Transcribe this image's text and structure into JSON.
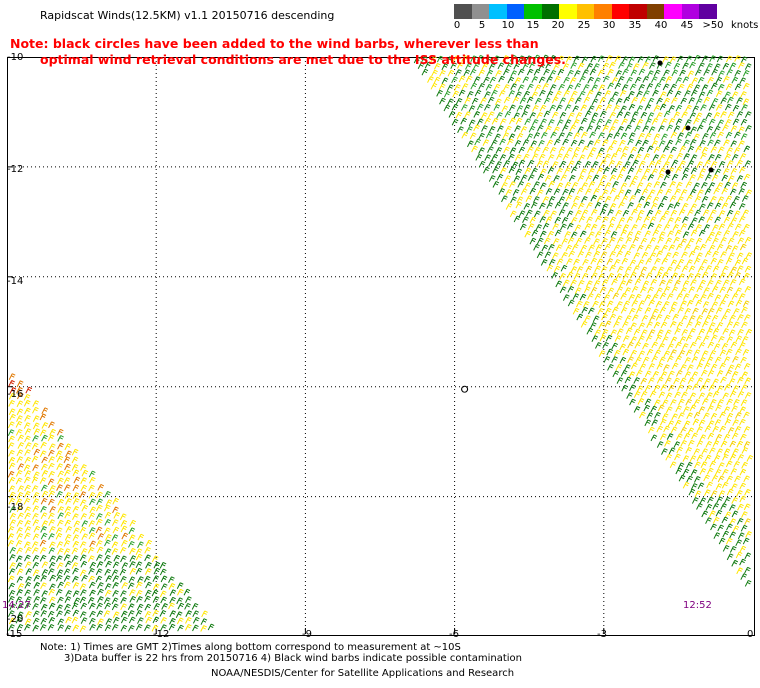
{
  "title": "Rapidscat Winds(12.5KM) v1.1 20150716 descending",
  "note": {
    "line1": "Note: black circles have been added to the wind barbs, wherever less than",
    "line2": "optimal wind retrieval conditions are met due to the ISS attitude changes."
  },
  "colorbar": {
    "ticks": [
      "0",
      "5",
      "10",
      "15",
      "20",
      "25",
      "30",
      "35",
      "40",
      "45",
      ">50"
    ],
    "units": "knots",
    "colors": [
      "#505050",
      "#909090",
      "#00c0ff",
      "#0060ff",
      "#00c000",
      "#007000",
      "#ffff00",
      "#ffc000",
      "#ff8000",
      "#ff0000",
      "#c00000",
      "#804000",
      "#ff00ff",
      "#b000e0",
      "#6000a0"
    ]
  },
  "chart_data": {
    "type": "map",
    "lat_labels": [
      "-10",
      "-12",
      "-14",
      "-16",
      "-18",
      "-20"
    ],
    "lon_labels": [
      "-15",
      "-12",
      "-9",
      "-6",
      "-3",
      "0"
    ],
    "lat_range": [
      -20.5,
      -10
    ],
    "lon_range": [
      -15,
      0
    ],
    "grid": "dotted",
    "swaths": [
      {
        "name": "swath-east",
        "time_label": "12:52",
        "dominant_speed_knots": [
          15,
          25
        ]
      },
      {
        "name": "swath-west",
        "time_label": "14:27",
        "dominant_speed_knots": [
          15,
          35
        ]
      }
    ],
    "isolated_barb": {
      "lon": -5.8,
      "lat": -16.1
    }
  },
  "footer": {
    "line1": "Note: 1) Times are GMT 2)Times along bottom correspond to measurement at ~10S",
    "line2": "3)Data buffer is 22 hrs from 20150716 4) Black wind barbs indicate possible contamination",
    "line3": "NOAA/NESDIS/Center for Satellite Applications and Research"
  }
}
